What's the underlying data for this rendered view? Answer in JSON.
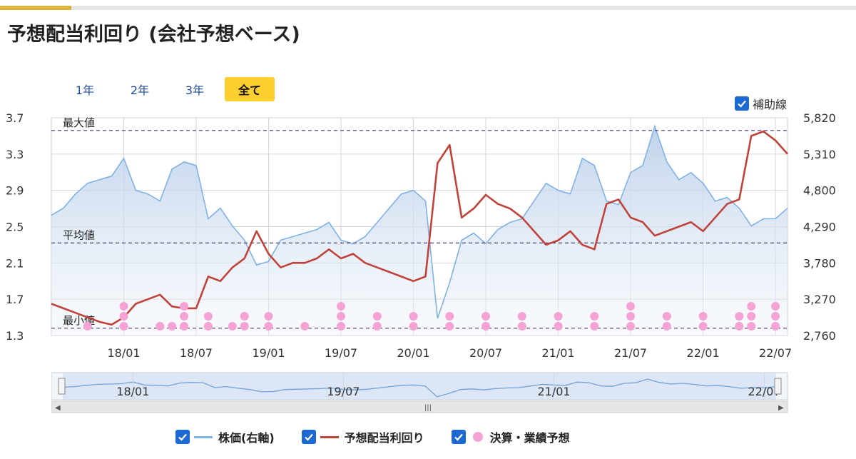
{
  "page": {
    "title": "予想配当利回り (会社予想ベース)"
  },
  "tabs": [
    {
      "label": "1年",
      "active": false
    },
    {
      "label": "2年",
      "active": false
    },
    {
      "label": "3年",
      "active": false
    },
    {
      "label": "全て",
      "active": true
    }
  ],
  "aux_lines_toggle": {
    "label": "補助線",
    "checked": true
  },
  "legend": [
    {
      "label": "株価(右軸)",
      "color": "#7fb2e5",
      "kind": "line",
      "checked": true
    },
    {
      "label": "予想配当利回り",
      "color": "#c0433a",
      "kind": "line",
      "checked": true
    },
    {
      "label": "決算・業績予想",
      "color": "#f5a3d4",
      "kind": "dot",
      "checked": true
    }
  ],
  "colors": {
    "accent": "#fccf2e",
    "link": "#1f4d99",
    "checkbox": "#1c69d4",
    "ref_line": "#4a3b7a"
  },
  "chart_data": {
    "type": "line",
    "x_start": "2017-07",
    "x_end": "2022-08",
    "x_ticks": [
      "18/01",
      "18/07",
      "19/01",
      "19/07",
      "20/01",
      "20/07",
      "21/01",
      "21/07",
      "22/01",
      "22/07"
    ],
    "left_axis": {
      "ticks": [
        "3.7",
        "3.3",
        "2.9",
        "2.5",
        "2.1",
        "1.7",
        "1.3"
      ],
      "ylim": [
        1.3,
        3.7
      ]
    },
    "right_axis": {
      "ticks": [
        "5,820",
        "5,310",
        "4,800",
        "4,290",
        "3,780",
        "3,270",
        "2,760"
      ],
      "ylim": [
        2760,
        5820
      ]
    },
    "grid": true,
    "reference_lines": [
      {
        "label": "最大値",
        "value": 3.56
      },
      {
        "label": "平均値",
        "value": 2.32
      },
      {
        "label": "最小値",
        "value": 1.38
      }
    ],
    "series": [
      {
        "name": "株価(右軸)",
        "axis": "right",
        "x": [
          "2017-07",
          "2017-08",
          "2017-09",
          "2017-10",
          "2017-11",
          "2017-12",
          "2018-01",
          "2018-02",
          "2018-03",
          "2018-04",
          "2018-05",
          "2018-06",
          "2018-07",
          "2018-08",
          "2018-09",
          "2018-10",
          "2018-11",
          "2018-12",
          "2019-01",
          "2019-02",
          "2019-03",
          "2019-04",
          "2019-05",
          "2019-06",
          "2019-07",
          "2019-08",
          "2019-09",
          "2019-10",
          "2019-11",
          "2019-12",
          "2020-01",
          "2020-02",
          "2020-03",
          "2020-04",
          "2020-05",
          "2020-06",
          "2020-07",
          "2020-08",
          "2020-09",
          "2020-10",
          "2020-11",
          "2020-12",
          "2021-01",
          "2021-02",
          "2021-03",
          "2021-04",
          "2021-05",
          "2021-06",
          "2021-07",
          "2021-08",
          "2021-09",
          "2021-10",
          "2021-11",
          "2021-12",
          "2022-01",
          "2022-02",
          "2022-03",
          "2022-04",
          "2022-05",
          "2022-06",
          "2022-07",
          "2022-08"
        ],
        "values": [
          4450,
          4550,
          4750,
          4900,
          4950,
          5000,
          5250,
          4800,
          4750,
          4650,
          5100,
          5200,
          5150,
          4400,
          4550,
          4300,
          4100,
          3750,
          3800,
          4100,
          4150,
          4200,
          4250,
          4350,
          4100,
          4050,
          4150,
          4350,
          4550,
          4750,
          4800,
          4650,
          3000,
          3500,
          4100,
          4200,
          4050,
          4250,
          4350,
          4400,
          4650,
          4900,
          4800,
          4750,
          5250,
          5150,
          4650,
          4600,
          5050,
          5150,
          5700,
          5200,
          4950,
          5050,
          4900,
          4650,
          4700,
          4550,
          4300,
          4400,
          4400,
          4550
        ],
        "color": "#7fb2e5"
      },
      {
        "name": "予想配当利回り",
        "axis": "left",
        "x": [
          "2017-07",
          "2017-08",
          "2017-09",
          "2017-10",
          "2017-11",
          "2017-12",
          "2018-01",
          "2018-02",
          "2018-03",
          "2018-04",
          "2018-05",
          "2018-06",
          "2018-07",
          "2018-08",
          "2018-09",
          "2018-10",
          "2018-11",
          "2018-12",
          "2019-01",
          "2019-02",
          "2019-03",
          "2019-04",
          "2019-05",
          "2019-06",
          "2019-07",
          "2019-08",
          "2019-09",
          "2019-10",
          "2019-11",
          "2019-12",
          "2020-01",
          "2020-02",
          "2020-03",
          "2020-04",
          "2020-05",
          "2020-06",
          "2020-07",
          "2020-08",
          "2020-09",
          "2020-10",
          "2020-11",
          "2020-12",
          "2021-01",
          "2021-02",
          "2021-03",
          "2021-04",
          "2021-05",
          "2021-06",
          "2021-07",
          "2021-08",
          "2021-09",
          "2021-10",
          "2021-11",
          "2021-12",
          "2022-01",
          "2022-02",
          "2022-03",
          "2022-04",
          "2022-05",
          "2022-06",
          "2022-07",
          "2022-08"
        ],
        "values": [
          1.65,
          1.6,
          1.55,
          1.5,
          1.45,
          1.42,
          1.5,
          1.65,
          1.7,
          1.75,
          1.62,
          1.6,
          1.6,
          1.95,
          1.9,
          2.05,
          2.15,
          2.45,
          2.2,
          2.05,
          2.1,
          2.1,
          2.15,
          2.25,
          2.15,
          2.2,
          2.1,
          2.05,
          2.0,
          1.95,
          1.9,
          1.95,
          3.2,
          3.4,
          2.6,
          2.7,
          2.85,
          2.75,
          2.7,
          2.6,
          2.45,
          2.3,
          2.35,
          2.45,
          2.3,
          2.25,
          2.75,
          2.8,
          2.6,
          2.55,
          2.4,
          2.45,
          2.5,
          2.55,
          2.45,
          2.6,
          2.75,
          2.8,
          3.5,
          3.55,
          3.45,
          3.3
        ],
        "color": "#c0433a"
      }
    ],
    "events": {
      "name": "決算・業績予想",
      "x": [
        "2017-10",
        "2018-01",
        "2018-04",
        "2018-05",
        "2018-06",
        "2018-08",
        "2018-10",
        "2018-11",
        "2019-01",
        "2019-04",
        "2019-07",
        "2019-10",
        "2020-01",
        "2020-04",
        "2020-07",
        "2020-10",
        "2021-01",
        "2021-04",
        "2021-07",
        "2021-10",
        "2022-01",
        "2022-04",
        "2022-05",
        "2022-07"
      ],
      "counts": [
        1,
        3,
        1,
        1,
        3,
        2,
        1,
        2,
        2,
        1,
        3,
        2,
        2,
        2,
        2,
        2,
        2,
        2,
        3,
        2,
        2,
        2,
        3,
        3
      ],
      "color": "#f5a3d4"
    }
  }
}
